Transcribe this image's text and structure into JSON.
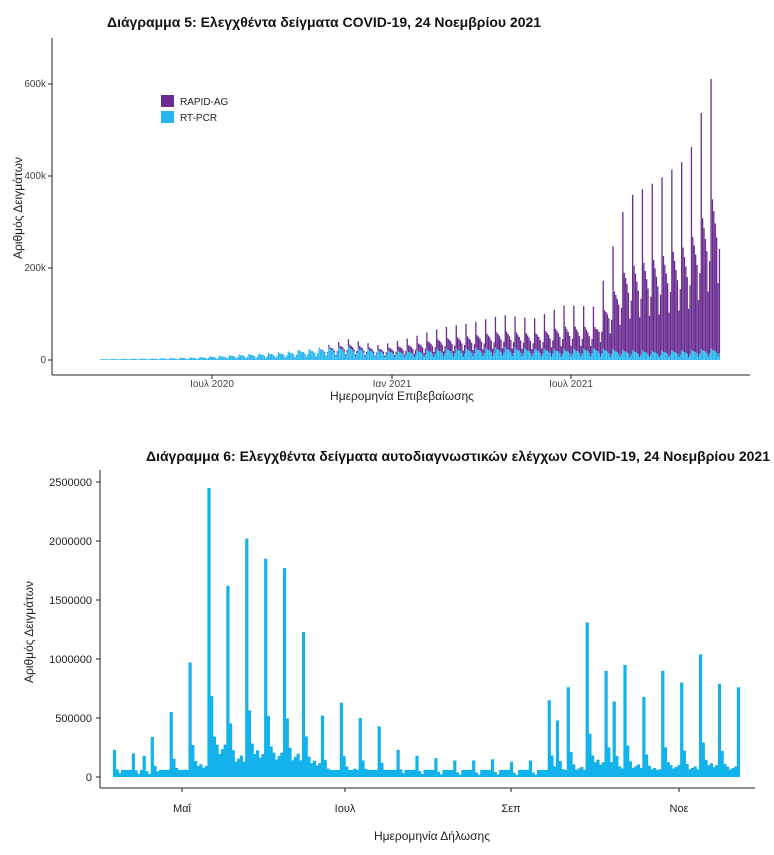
{
  "chart_data": [
    {
      "type": "bar",
      "title": "Διάγραμμα 5: Ελεγχθέντα δείγματα COVID-19, 24 Νοεμβρίου 2021",
      "xlabel": "Ημερομηνία Επιβεβαίωσης",
      "ylabel": "Αριθμός Δειγμάτων",
      "x_ticks": [
        "Ιουλ 2020",
        "Ιαν 2021",
        "Ιουλ 2021"
      ],
      "y_ticks": [
        "0",
        "200k",
        "400k",
        "600k"
      ],
      "ylim": [
        0,
        700000
      ],
      "stacked": true,
      "legend_position": "top-left",
      "series_colors": {
        "RAPID-AG": "#6a2c91",
        "RT-PCR": "#29b6f0"
      },
      "periods": [
        "2020-03",
        "2020-04",
        "2020-05",
        "2020-06",
        "2020-07",
        "2020-08",
        "2020-09",
        "2020-10",
        "2020-11",
        "2020-12",
        "2021-01",
        "2021-02",
        "2021-03",
        "2021-04",
        "2021-05",
        "2021-06",
        "2021-07",
        "2021-08",
        "2021-09",
        "2021-10",
        "2021-11"
      ],
      "series": [
        {
          "name": "RAPID-AG",
          "peak_values": [
            0,
            0,
            0,
            0,
            0,
            0,
            0,
            0,
            15000,
            10000,
            28000,
            45000,
            55000,
            70000,
            65000,
            95000,
            90000,
            330000,
            370000,
            420000,
            650000
          ]
        },
        {
          "name": "RT-PCR",
          "peak_values": [
            2000,
            3000,
            4000,
            6000,
            10000,
            14000,
            18000,
            26000,
            30000,
            22000,
            20000,
            25000,
            26000,
            28000,
            25000,
            24000,
            26000,
            22000,
            20000,
            22000,
            26000
          ]
        }
      ]
    },
    {
      "type": "bar",
      "title": "Διάγραμμα 6: Ελεγχθέντα δείγματα αυτοδιαγνωστικών ελέγχων COVID-19, 24 Νοεμβρίου 2021",
      "xlabel": "Ημερομηνία Δήλωσης",
      "ylabel": "Αριθμός Δειγμάτων",
      "x_ticks": [
        "Μαΐ",
        "Ιουλ",
        "Σεπ",
        "Νοε"
      ],
      "y_ticks": [
        "0",
        "500000",
        "1000000",
        "1500000",
        "2000000",
        "2500000"
      ],
      "ylim": [
        0,
        2550000
      ],
      "color": "#13b2ea",
      "x": [
        "2021-04-06",
        "2021-04-13",
        "2021-04-17",
        "2021-04-20",
        "2021-04-27",
        "2021-05-04",
        "2021-05-11",
        "2021-05-18",
        "2021-05-25",
        "2021-06-01",
        "2021-06-08",
        "2021-06-15",
        "2021-06-22",
        "2021-06-29",
        "2021-07-06",
        "2021-07-13",
        "2021-07-20",
        "2021-07-27",
        "2021-08-03",
        "2021-08-10",
        "2021-08-17",
        "2021-08-24",
        "2021-08-31",
        "2021-09-07",
        "2021-09-14",
        "2021-09-17",
        "2021-09-21",
        "2021-09-28",
        "2021-10-05",
        "2021-10-08",
        "2021-10-12",
        "2021-10-19",
        "2021-10-26",
        "2021-11-02",
        "2021-11-09",
        "2021-11-16",
        "2021-11-23"
      ],
      "values": [
        230000,
        200000,
        180000,
        340000,
        550000,
        970000,
        2450000,
        1620000,
        2020000,
        1850000,
        1770000,
        1230000,
        520000,
        630000,
        500000,
        430000,
        230000,
        180000,
        160000,
        140000,
        140000,
        150000,
        130000,
        140000,
        650000,
        480000,
        760000,
        1310000,
        900000,
        640000,
        950000,
        680000,
        900000,
        800000,
        1040000,
        790000,
        760000
      ]
    }
  ]
}
